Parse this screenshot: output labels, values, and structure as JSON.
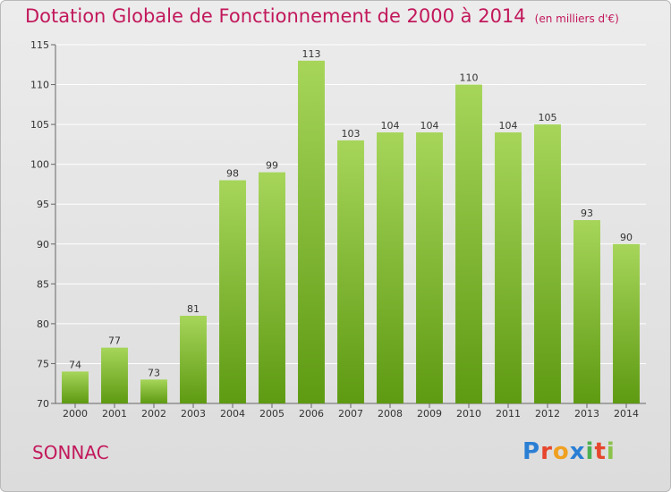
{
  "chart_data": {
    "type": "bar",
    "title": "Dotation Globale de Fonctionnement de 2000 à 2014",
    "subtitle": "(en milliers d'€)",
    "xlabel": "",
    "ylabel": "",
    "categories": [
      "2000",
      "2001",
      "2002",
      "2003",
      "2004",
      "2005",
      "2006",
      "2007",
      "2008",
      "2009",
      "2010",
      "2011",
      "2012",
      "2013",
      "2014"
    ],
    "values": [
      74,
      77,
      73,
      81,
      98,
      99,
      113,
      103,
      104,
      104,
      110,
      104,
      105,
      93,
      90
    ],
    "ylim": [
      70,
      115
    ],
    "yticks": [
      70,
      75,
      80,
      85,
      90,
      95,
      100,
      105,
      110,
      115
    ],
    "grid": true,
    "bar_color_top": "#a6d55a",
    "bar_color_bottom": "#5e9a12"
  },
  "footer": {
    "commune": "SONNAC",
    "logo_letters": [
      "P",
      "r",
      "o",
      "x",
      "i",
      "t",
      "i"
    ]
  },
  "colors": {
    "title": "#c2185b",
    "grid": "#ffffff"
  }
}
